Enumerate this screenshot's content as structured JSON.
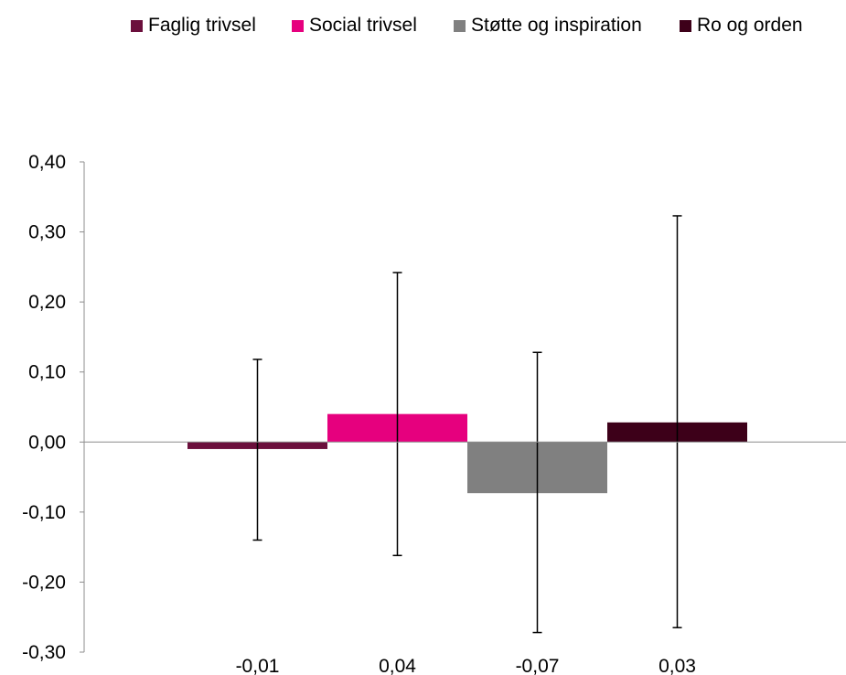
{
  "chart_data": {
    "type": "bar",
    "categories": [
      "Faglig trivsel",
      "Social trivsel",
      "Støtte og inspiration",
      "Ro og orden"
    ],
    "series": [
      {
        "name": "Faglig trivsel",
        "value": -0.01,
        "value_label": "-0,01",
        "error_low": -0.14,
        "error_high": 0.118,
        "color": "#6b0f3c"
      },
      {
        "name": "Social trivsel",
        "value": 0.04,
        "value_label": "0,04",
        "error_low": -0.162,
        "error_high": 0.242,
        "color": "#e6007e"
      },
      {
        "name": "Støtte og inspiration",
        "value": -0.073,
        "value_label": "-0,07",
        "error_low": -0.272,
        "error_high": 0.128,
        "color": "#808080"
      },
      {
        "name": "Ro og orden",
        "value": 0.028,
        "value_label": "0,03",
        "error_low": -0.265,
        "error_high": 0.323,
        "color": "#3d0019"
      }
    ],
    "ylim": [
      -0.3,
      0.4
    ],
    "yticks": [
      0.4,
      0.3,
      0.2,
      0.1,
      0.0,
      -0.1,
      -0.2,
      -0.3
    ],
    "ytick_labels": [
      "0,40",
      "0,30",
      "0,20",
      "0,10",
      "0,00",
      "-0,10",
      "-0,20",
      "-0,30"
    ],
    "legend_position": "top",
    "grid": false,
    "title": "",
    "xlabel": "",
    "ylabel": ""
  }
}
